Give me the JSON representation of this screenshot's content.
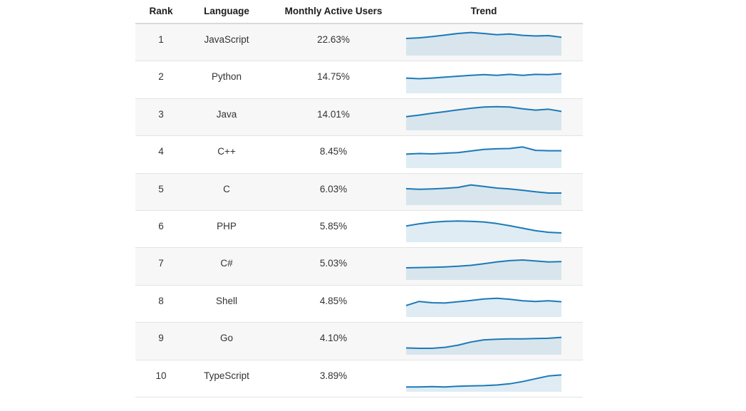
{
  "colors": {
    "sparkline_stroke": "#1b7ab8",
    "sparkline_fill": "rgba(31,119,180,0.14)",
    "row_alt_background": "#f7f7f7",
    "row_border": "#e3e3e3",
    "header_border": "#d9d9d9",
    "header_text": "#1d1d1d",
    "cell_text": "#333333"
  },
  "chart_data": {
    "type": "table",
    "title": "Programming languages ranked by monthly active users with trend sparklines",
    "columns": [
      "Rank",
      "Language",
      "Monthly Active Users",
      "Trend"
    ],
    "rows": [
      {
        "rank": "1",
        "language": "JavaScript",
        "monthly_active_users": "22.63%"
      },
      {
        "rank": "2",
        "language": "Python",
        "monthly_active_users": "14.75%"
      },
      {
        "rank": "3",
        "language": "Java",
        "monthly_active_users": "14.01%"
      },
      {
        "rank": "4",
        "language": "C++",
        "monthly_active_users": "8.45%"
      },
      {
        "rank": "5",
        "language": "C",
        "monthly_active_users": "6.03%"
      },
      {
        "rank": "6",
        "language": "PHP",
        "monthly_active_users": "5.85%"
      },
      {
        "rank": "7",
        "language": "C#",
        "monthly_active_users": "5.03%"
      },
      {
        "rank": "8",
        "language": "Shell",
        "monthly_active_users": "4.85%"
      },
      {
        "rank": "9",
        "language": "Go",
        "monthly_active_users": "4.10%"
      },
      {
        "rank": "10",
        "language": "TypeScript",
        "monthly_active_users": "3.89%"
      }
    ],
    "sparklines": {
      "type": "area",
      "note": "normalized trend values 0-1, equally spaced in time, left to right",
      "series": [
        {
          "name": "JavaScript",
          "values": [
            0.5,
            0.52,
            0.56,
            0.61,
            0.66,
            0.69,
            0.66,
            0.62,
            0.64,
            0.6,
            0.58,
            0.59,
            0.54
          ]
        },
        {
          "name": "Python",
          "values": [
            0.44,
            0.42,
            0.44,
            0.47,
            0.5,
            0.53,
            0.55,
            0.53,
            0.56,
            0.53,
            0.56,
            0.55,
            0.58
          ]
        },
        {
          "name": "Java",
          "values": [
            0.39,
            0.44,
            0.5,
            0.55,
            0.61,
            0.66,
            0.7,
            0.71,
            0.7,
            0.64,
            0.6,
            0.63,
            0.56
          ]
        },
        {
          "name": "C++",
          "values": [
            0.4,
            0.42,
            0.41,
            0.43,
            0.45,
            0.5,
            0.55,
            0.57,
            0.58,
            0.63,
            0.52,
            0.51,
            0.51
          ]
        },
        {
          "name": "C",
          "values": [
            0.48,
            0.46,
            0.47,
            0.49,
            0.52,
            0.6,
            0.55,
            0.5,
            0.47,
            0.43,
            0.38,
            0.34,
            0.34
          ]
        },
        {
          "name": "PHP",
          "values": [
            0.47,
            0.54,
            0.59,
            0.62,
            0.63,
            0.62,
            0.6,
            0.55,
            0.48,
            0.4,
            0.32,
            0.27,
            0.25
          ]
        },
        {
          "name": "C#",
          "values": [
            0.34,
            0.35,
            0.36,
            0.37,
            0.39,
            0.42,
            0.47,
            0.53,
            0.57,
            0.59,
            0.56,
            0.53,
            0.54
          ]
        },
        {
          "name": "Shell",
          "values": [
            0.32,
            0.45,
            0.41,
            0.4,
            0.44,
            0.48,
            0.53,
            0.55,
            0.52,
            0.47,
            0.45,
            0.47,
            0.44
          ]
        },
        {
          "name": "Go",
          "values": [
            0.17,
            0.16,
            0.16,
            0.19,
            0.26,
            0.36,
            0.43,
            0.45,
            0.46,
            0.46,
            0.47,
            0.48,
            0.51
          ]
        },
        {
          "name": "TypeScript",
          "values": [
            0.11,
            0.11,
            0.12,
            0.11,
            0.13,
            0.14,
            0.15,
            0.17,
            0.21,
            0.28,
            0.37,
            0.46,
            0.49
          ]
        }
      ]
    }
  }
}
